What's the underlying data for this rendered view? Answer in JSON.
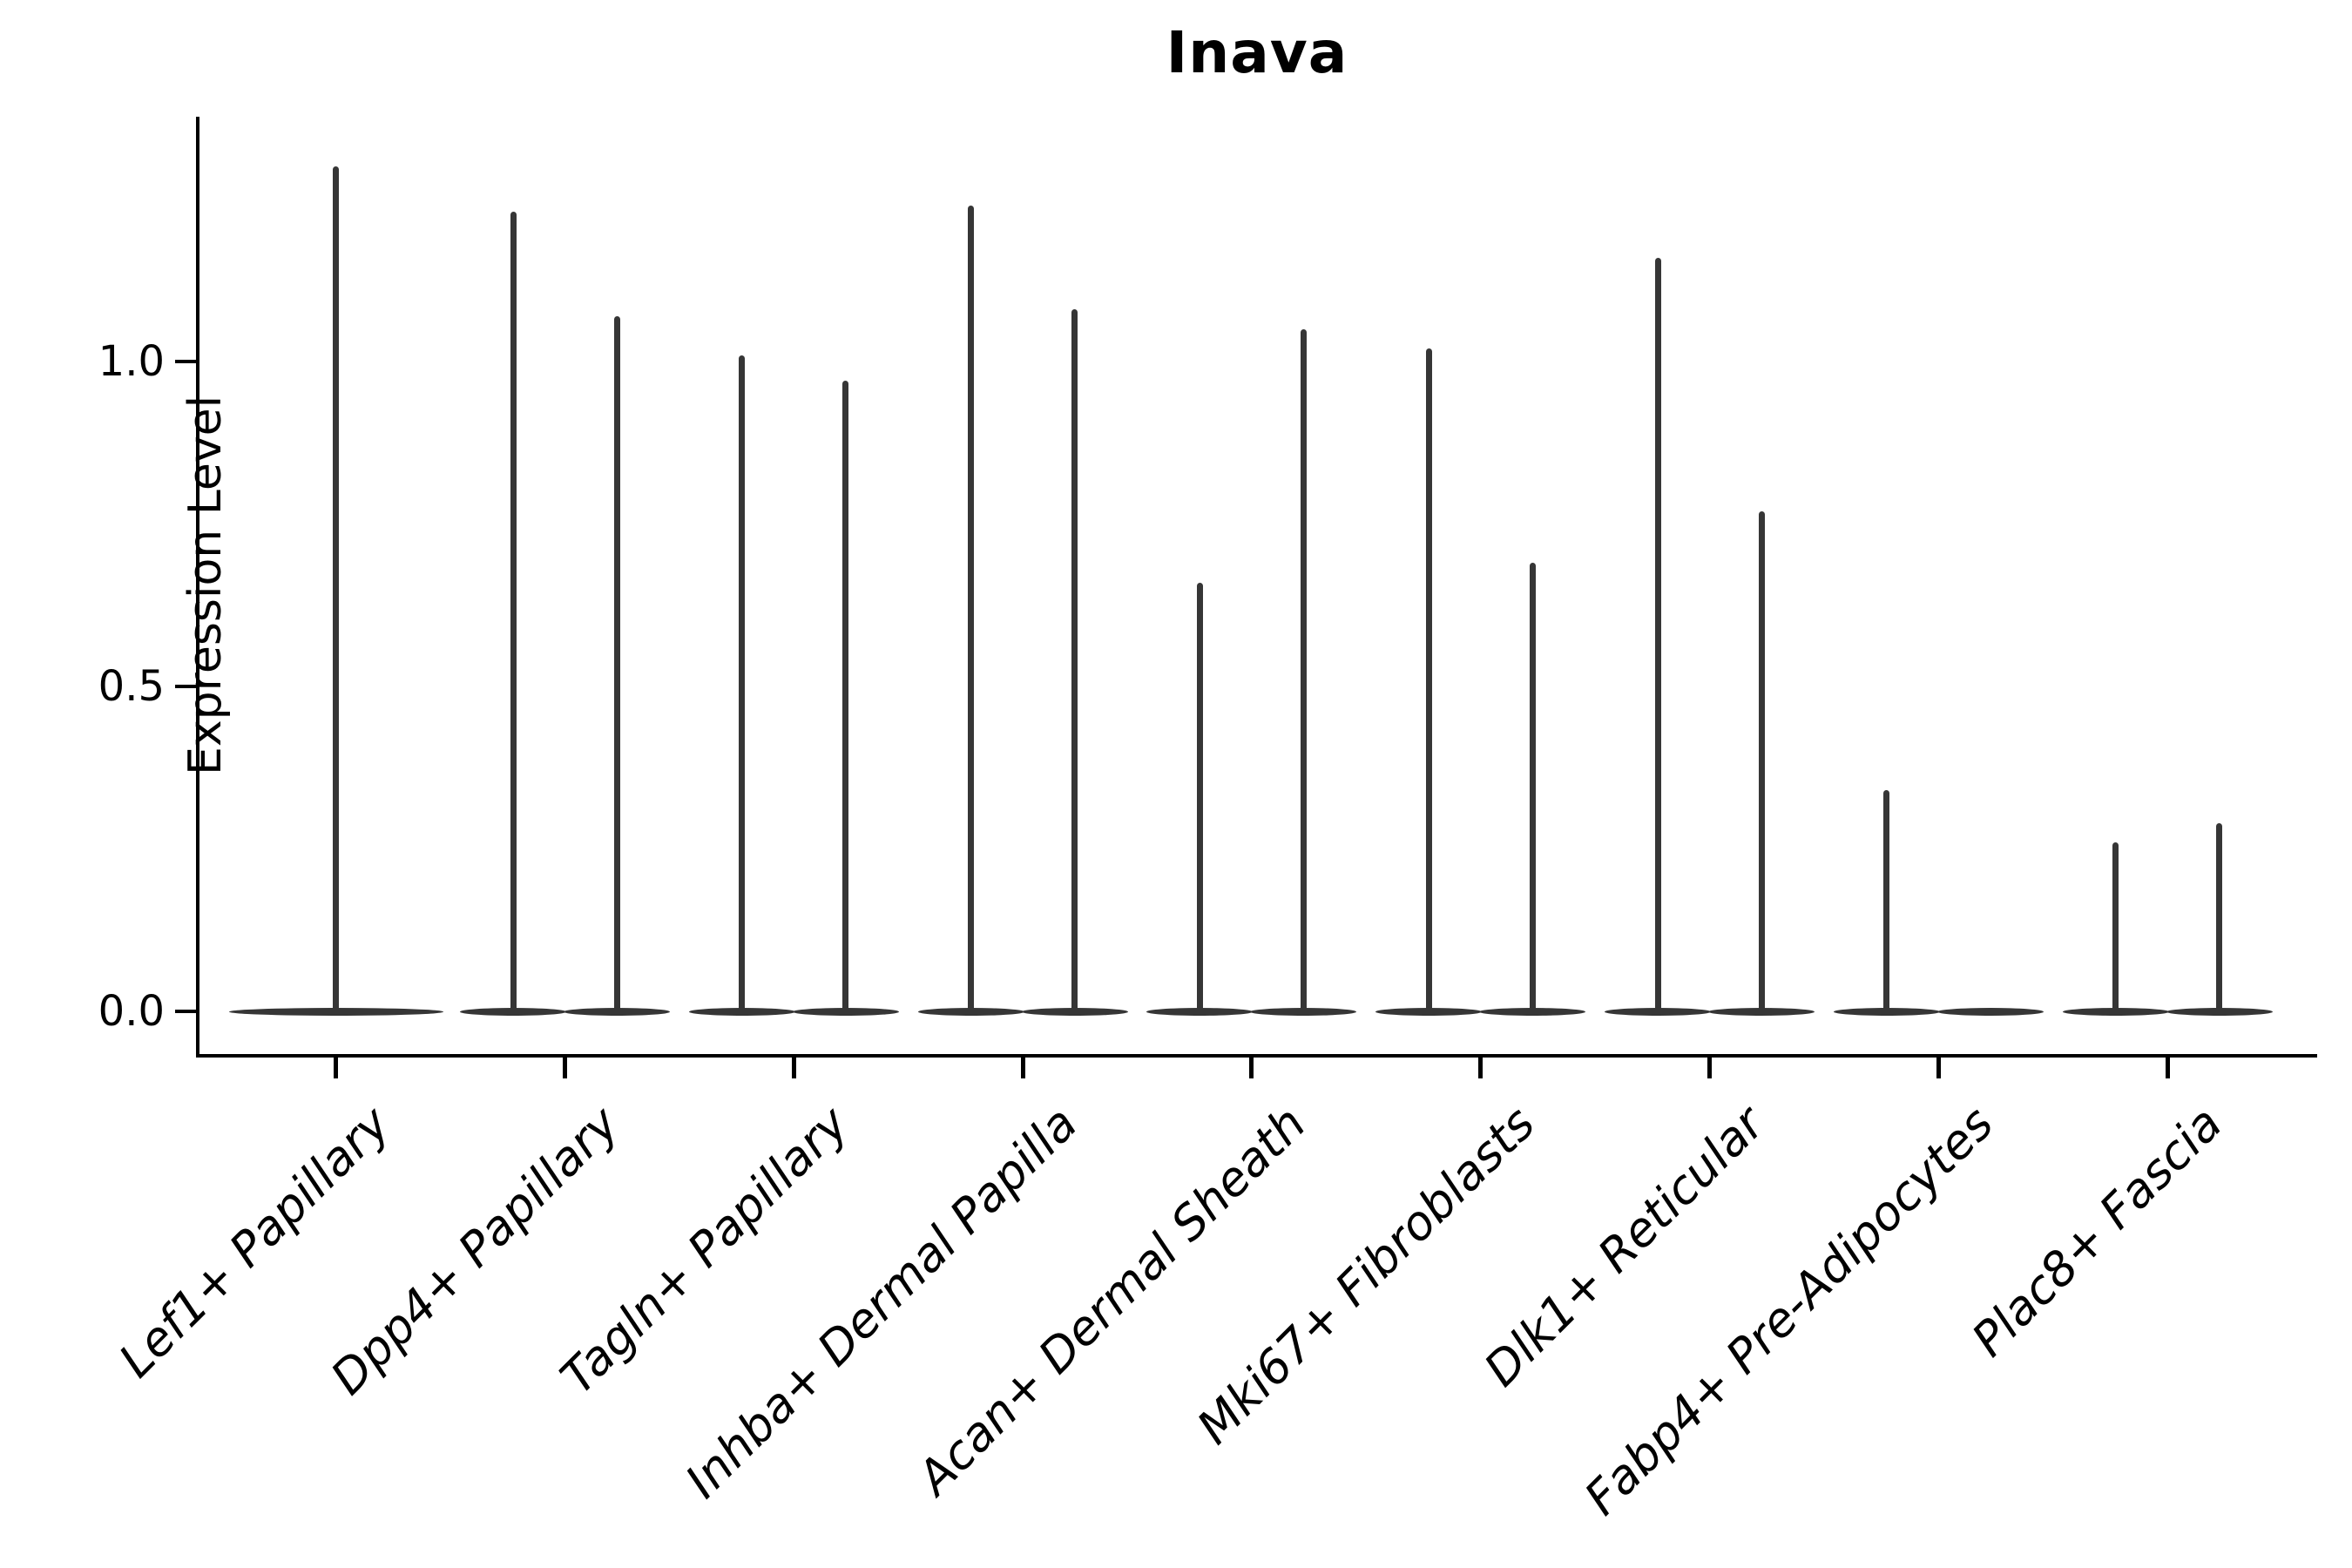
{
  "title": "Inava",
  "y_axis": {
    "label": "Expression Level",
    "tick_labels": [
      "0.0",
      "0.5",
      "1.0"
    ]
  },
  "colors": {
    "violin": "#363636",
    "axis": "#000000",
    "text": "#000000",
    "background": "#ffffff"
  },
  "chart_data": {
    "type": "violin",
    "title": "Inava",
    "ylabel": "Expression Level",
    "xlabel": "",
    "yticks": [
      0.0,
      0.5,
      1.0
    ],
    "ylim": [
      -0.07,
      1.38
    ],
    "grid": false,
    "legend_position": "none",
    "x_tick_rotation": 45,
    "description": "Violin plot of Inava expression; every violin is a flat disc of density at 0 with a single thin spike rising to the maximum expression value. Most categories contain two side-by-side violins (two unlabeled groups).",
    "categories": [
      "Lef1+ Papillary",
      "Dpp4+ Papillary",
      "Tagln+ Papillary",
      "Inhba+ Dermal Papilla",
      "Acan+ Dermal Sheath",
      "Mki67+ Fibroblasts",
      "Dlk1+ Reticular",
      "Fabp4+ Pre-Adipocytes",
      "Plac8+ Fascia"
    ],
    "violins": [
      {
        "category": "Lef1+ Papillary",
        "parts": [
          {
            "position": "center",
            "max": 1.3
          }
        ]
      },
      {
        "category": "Dpp4+ Papillary",
        "parts": [
          {
            "position": "left",
            "max": 1.23
          },
          {
            "position": "right",
            "max": 1.07
          }
        ]
      },
      {
        "category": "Tagln+ Papillary",
        "parts": [
          {
            "position": "left",
            "max": 1.01
          },
          {
            "position": "right",
            "max": 0.97
          }
        ]
      },
      {
        "category": "Inhba+ Dermal Papilla",
        "parts": [
          {
            "position": "left",
            "max": 1.24
          },
          {
            "position": "right",
            "max": 1.08
          }
        ]
      },
      {
        "category": "Acan+ Dermal Sheath",
        "parts": [
          {
            "position": "left",
            "max": 0.66
          },
          {
            "position": "right",
            "max": 1.05
          }
        ]
      },
      {
        "category": "Mki67+ Fibroblasts",
        "parts": [
          {
            "position": "left",
            "max": 1.02
          },
          {
            "position": "right",
            "max": 0.69
          }
        ]
      },
      {
        "category": "Dlk1+ Reticular",
        "parts": [
          {
            "position": "left",
            "max": 1.16
          },
          {
            "position": "right",
            "max": 0.77
          }
        ]
      },
      {
        "category": "Fabp4+ Pre-Adipocytes",
        "parts": [
          {
            "position": "left",
            "max": 0.34
          },
          {
            "position": "right",
            "max": 0.0
          }
        ]
      },
      {
        "category": "Plac8+ Fascia",
        "parts": [
          {
            "position": "left",
            "max": 0.26
          },
          {
            "position": "right",
            "max": 0.29
          }
        ]
      }
    ]
  }
}
